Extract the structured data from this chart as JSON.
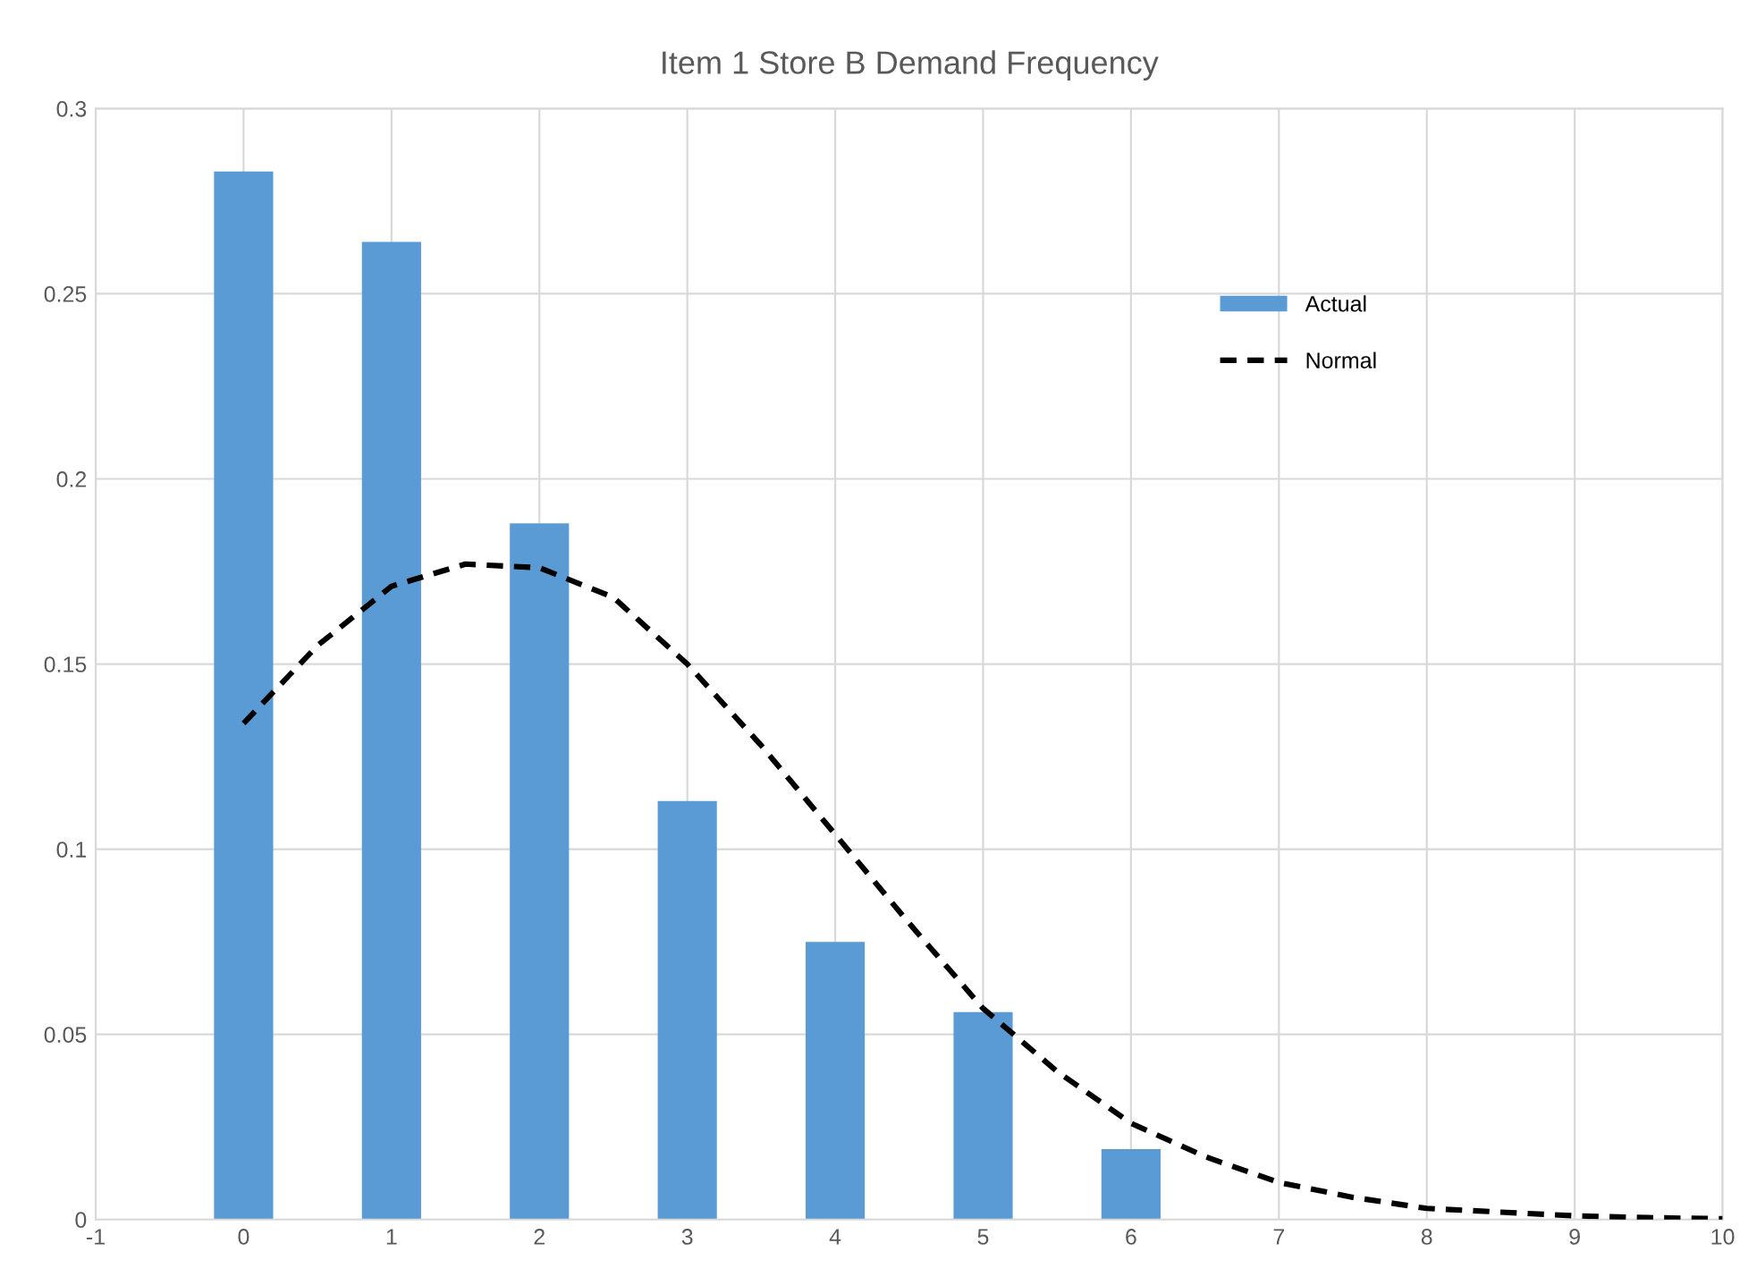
{
  "chart_data": {
    "type": "bar",
    "title": "Item 1 Store B Demand Frequency",
    "xlim": [
      -1,
      10
    ],
    "xticks": [
      -1,
      0,
      1,
      2,
      3,
      4,
      5,
      6,
      7,
      8,
      9,
      10
    ],
    "ylim": [
      0,
      0.3
    ],
    "yticks": [
      0,
      0.05,
      0.1,
      0.15,
      0.2,
      0.25,
      0.3
    ],
    "grid": true,
    "legend": "top right",
    "series": [
      {
        "name": "Actual",
        "color": "#5b9bd5",
        "x": [
          0,
          1,
          2,
          3,
          4,
          5,
          6
        ],
        "values": [
          0.283,
          0.264,
          0.188,
          0.113,
          0.075,
          0.056,
          0.019
        ]
      },
      {
        "name": "Normal",
        "type": "line",
        "color": "#000000",
        "line_style": "dashed",
        "marker": "none",
        "x": [
          0,
          0.5,
          1,
          1.5,
          2,
          2.5,
          3,
          3.5,
          4,
          4.5,
          5,
          5.5,
          6,
          6.5,
          7,
          7.5,
          8,
          8.5,
          9,
          9.5,
          10
        ],
        "values": [
          0.134,
          0.155,
          0.171,
          0.177,
          0.176,
          0.168,
          0.15,
          0.128,
          0.104,
          0.08,
          0.057,
          0.04,
          0.026,
          0.017,
          0.01,
          0.006,
          0.003,
          0.002,
          0.001,
          0.0005,
          0.0002
        ]
      }
    ]
  }
}
